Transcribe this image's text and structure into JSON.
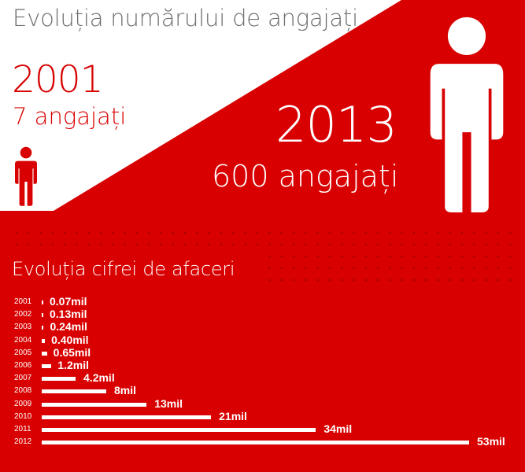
{
  "colors": {
    "brand_red": "#d80000",
    "dark_red_dots": "#a80000",
    "white": "#ffffff",
    "title_gray": "#6e6e6e"
  },
  "header": {
    "title": "Evoluția numărului de angajați"
  },
  "employees": {
    "start": {
      "year": "2001",
      "count_label": "7 angajați",
      "count": 7
    },
    "end": {
      "year": "2013",
      "count_label": "600 angajați",
      "count": 600
    },
    "icons": [
      "person-icon-small",
      "person-icon-large"
    ]
  },
  "revenue": {
    "title": "Evoluția cifrei de afaceri"
  },
  "chart_data": {
    "type": "bar",
    "orientation": "horizontal",
    "title": "Evoluția cifrei de afaceri",
    "xlabel": "",
    "ylabel": "",
    "unit": "mil",
    "categories": [
      "2001",
      "2002",
      "2003",
      "2004",
      "2005",
      "2006",
      "2007",
      "2008",
      "2009",
      "2010",
      "2011",
      "2012"
    ],
    "values": [
      0.07,
      0.13,
      0.24,
      0.4,
      0.65,
      1.2,
      4.2,
      8,
      13,
      21,
      34,
      53
    ],
    "labels": [
      "0.07mil",
      "0.13mil",
      "0.24mil",
      "0.40mil",
      "0.65mil",
      "1.2mil",
      "4.2mil",
      "8mil",
      "13mil",
      "21mil",
      "34mil",
      "53mil"
    ],
    "grid": false,
    "legend": null,
    "rows": [
      {
        "year": "2001",
        "label": "0.07mil"
      },
      {
        "year": "2002",
        "label": "0.13mil"
      },
      {
        "year": "2003",
        "label": "0.24mil"
      },
      {
        "year": "2004",
        "label": "0.40mil"
      },
      {
        "year": "2005",
        "label": "0.65mil"
      },
      {
        "year": "2006",
        "label": "1.2mil"
      },
      {
        "year": "2007",
        "label": "4.2mil"
      },
      {
        "year": "2008",
        "label": "8mil"
      },
      {
        "year": "2009",
        "label": "13mil"
      },
      {
        "year": "2010",
        "label": "21mil"
      },
      {
        "year": "2011",
        "label": "34mil"
      },
      {
        "year": "2012",
        "label": "53mil"
      }
    ]
  }
}
